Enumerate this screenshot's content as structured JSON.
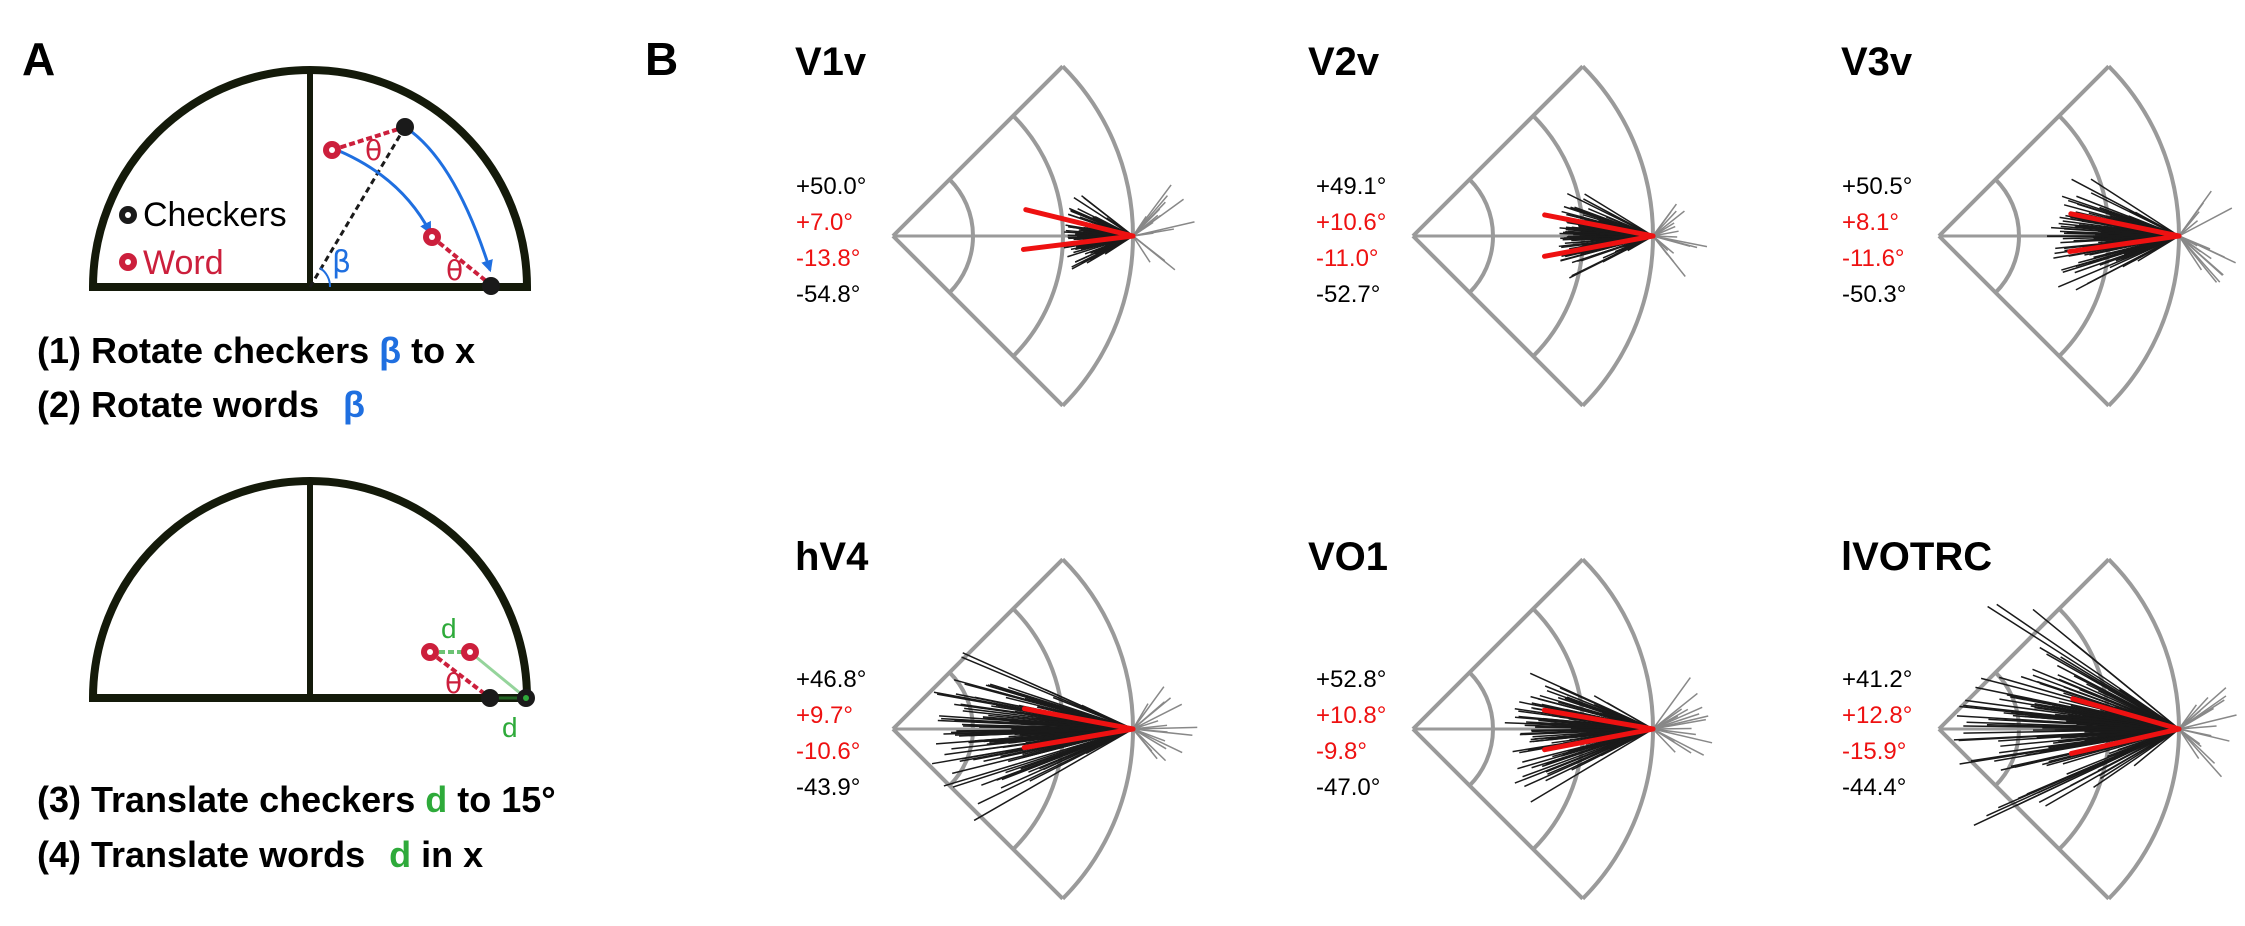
{
  "panel_a": {
    "letter": "A",
    "legend": {
      "checkers": "Checkers",
      "word": "Word"
    },
    "symbols": {
      "theta": "θ",
      "beta": "β",
      "d": "d"
    },
    "steps": {
      "s1_pre": "(1) Rotate checkers ",
      "s1_greek": "β",
      "s1_post": " to x",
      "s2_pre": "(2) Rotate words ",
      "s2_greek": "β",
      "s3_pre": "(3) Translate checkers ",
      "s3_d": "d",
      "s3_post": " to 15°",
      "s4_pre": "(4) Translate words ",
      "s4_d": "d",
      "s4_post": " in x"
    },
    "colors": {
      "outline": "#141a0a",
      "checkers": "#1a1a1a",
      "word": "#cc1f3c",
      "beta": "#1f6fe0",
      "d": "#2eaa3a"
    }
  },
  "panel_b": {
    "letter": "B",
    "colors": {
      "grid": "#9a9a9a",
      "vectors": "#1a1a1a",
      "outlier": "#888888",
      "mean": "#ee1111",
      "text": "#000000",
      "highlight": "#ee1111"
    },
    "fans": [
      {
        "title": "V1v",
        "upper": "+50.0°",
        "mean_upper": "+7.0°",
        "mean_lower": "-13.8°",
        "lower": "-54.8°",
        "up_deg": 7.0,
        "lo_deg": -13.8,
        "max_len": 0.3
      },
      {
        "title": "V2v",
        "upper": "+49.1°",
        "mean_upper": "+10.6°",
        "mean_lower": "-11.0°",
        "lower": "-52.7°",
        "up_deg": 10.6,
        "lo_deg": -11.0,
        "max_len": 0.4
      },
      {
        "title": "V3v",
        "upper": "+50.5°",
        "mean_upper": "+8.1°",
        "mean_lower": "-11.6°",
        "lower": "-50.3°",
        "up_deg": 8.1,
        "lo_deg": -11.6,
        "max_len": 0.55
      },
      {
        "title": "hV4",
        "upper": "+46.8°",
        "mean_upper": "+9.7°",
        "mean_lower": "-10.6°",
        "lower": "-43.9°",
        "up_deg": 9.7,
        "lo_deg": -10.6,
        "max_len": 0.85
      },
      {
        "title": "VO1",
        "upper": "+52.8°",
        "mean_upper": "+10.8°",
        "mean_lower": "-9.8°",
        "lower": "-47.0°",
        "up_deg": 10.8,
        "lo_deg": -9.8,
        "max_len": 0.62
      },
      {
        "title": "lVOTRC",
        "upper": "+41.2°",
        "mean_upper": "+12.8°",
        "mean_lower": "-15.9°",
        "lower": "-44.4°",
        "up_deg": 12.8,
        "lo_deg": -15.9,
        "max_len": 0.95
      }
    ]
  }
}
